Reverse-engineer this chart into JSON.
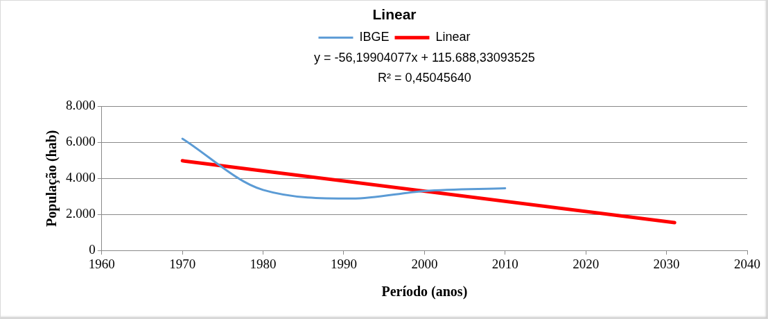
{
  "chart_data": {
    "type": "line",
    "title": "Linear",
    "xlabel": "Período (anos)",
    "ylabel": "População (hab)",
    "annotations": [
      "y = -56,19904077x + 115.688,33093525",
      "R² = 0,45045640"
    ],
    "x": [
      1970,
      1980,
      1991,
      2000,
      2010
    ],
    "series": [
      {
        "name": "IBGE",
        "color": "#5b9bd5",
        "values": [
          6200,
          3360,
          2880,
          3300,
          3450
        ]
      },
      {
        "name": "Linear",
        "color": "#ff0000",
        "type": "line",
        "x": [
          1970,
          2031
        ],
        "values": [
          4976,
          1547
        ]
      }
    ],
    "xlim": [
      1960,
      2040
    ],
    "xticks": [
      1960,
      1970,
      1980,
      1990,
      2000,
      2010,
      2020,
      2030,
      2040
    ],
    "ylim": [
      0,
      8000
    ],
    "yticks": [
      0,
      {
        "value": 2000,
        "label": "2.000"
      },
      {
        "value": 4000,
        "label": "4.000"
      },
      {
        "value": 6000,
        "label": "6.000"
      },
      {
        "value": 8000,
        "label": "8.000"
      }
    ],
    "grid": "y",
    "legend": "top",
    "marker": "none",
    "line_style": "solid"
  }
}
